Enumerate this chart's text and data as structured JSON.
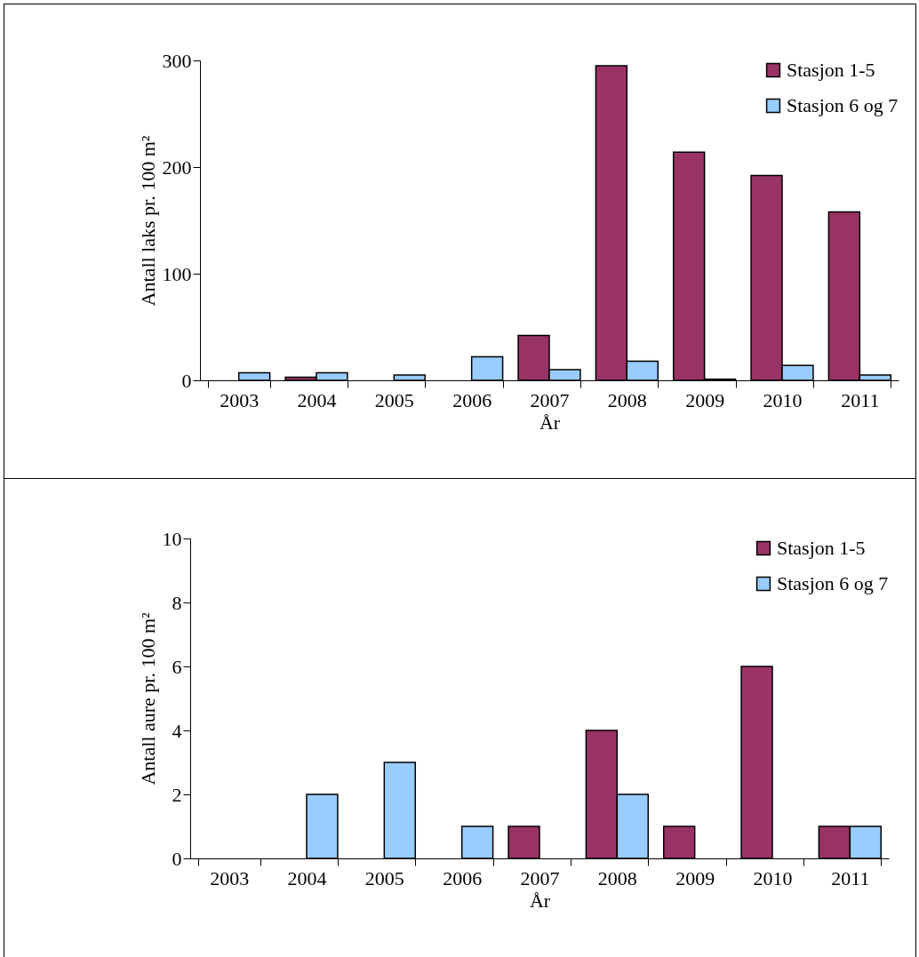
{
  "chart_data": [
    {
      "type": "bar",
      "xlabel": "År",
      "ylabel": "Antall laks pr. 100 m²",
      "categories": [
        "2003",
        "2004",
        "2005",
        "2006",
        "2007",
        "2008",
        "2009",
        "2010",
        "2011"
      ],
      "series": [
        {
          "name": "Stasjon 1-5",
          "color": "#993366",
          "values": [
            null,
            3,
            null,
            null,
            42,
            295,
            214,
            192,
            158
          ]
        },
        {
          "name": "Stasjon 6 og 7",
          "color": "#99ccff",
          "values": [
            7,
            7,
            5,
            22,
            10,
            18,
            1,
            14,
            5
          ]
        }
      ],
      "ylim": [
        0,
        300
      ],
      "yticks": [
        0,
        100,
        200,
        300
      ],
      "grid": false,
      "legend": "top right"
    },
    {
      "type": "bar",
      "xlabel": "År",
      "ylabel": "Antall aure pr. 100 m²",
      "categories": [
        "2003",
        "2004",
        "2005",
        "2006",
        "2007",
        "2008",
        "2009",
        "2010",
        "2011"
      ],
      "series": [
        {
          "name": "Stasjon 1-5",
          "color": "#993366",
          "values": [
            null,
            null,
            null,
            null,
            1,
            4,
            1,
            6,
            1
          ]
        },
        {
          "name": "Stasjon 6 og 7",
          "color": "#99ccff",
          "values": [
            null,
            2,
            3,
            1,
            null,
            2,
            null,
            null,
            1
          ]
        }
      ],
      "ylim": [
        0,
        10
      ],
      "yticks": [
        0,
        2,
        4,
        6,
        8,
        10
      ],
      "grid": false,
      "legend": "top right"
    }
  ]
}
